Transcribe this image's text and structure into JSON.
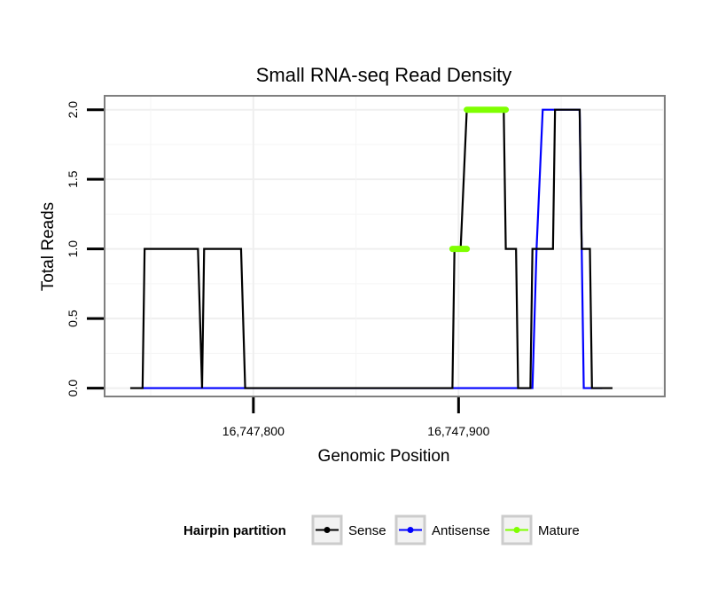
{
  "chart_data": {
    "type": "line",
    "title": "Small RNA-seq Read Density",
    "xlabel": "Genomic Position",
    "ylabel": "Total Reads",
    "xlim": [
      16747727.5,
      16748000.5
    ],
    "ylim": [
      -0.06,
      2.1
    ],
    "x_ticks": [
      16747800,
      16747900
    ],
    "x_tick_labels": [
      "16,747,800",
      "16,747,900"
    ],
    "y_ticks": [
      0.0,
      0.5,
      1.0,
      1.5,
      2.0
    ],
    "y_tick_labels": [
      "0.0",
      "0.5",
      "1.0",
      "1.5",
      "2.0"
    ],
    "legend": {
      "title": "Hairpin partition",
      "position": "bottom",
      "entries": [
        {
          "name": "Sense",
          "color": "#000000"
        },
        {
          "name": "Antisense",
          "color": "#0000ff"
        },
        {
          "name": "Mature",
          "color": "#7fff00"
        }
      ]
    },
    "series": [
      {
        "name": "Sense",
        "color": "#000000",
        "x": [
          16747740,
          16747746,
          16747747,
          16747773,
          16747775,
          16747776,
          16747794,
          16747796,
          16747897,
          16747898,
          16747901,
          16747904,
          16747922,
          16747923,
          16747928,
          16747929,
          16747935,
          16747936,
          16747946,
          16747947,
          16747959,
          16747960,
          16747964,
          16747965,
          16747975
        ],
        "y": [
          0,
          0,
          1,
          1,
          0,
          1,
          1,
          0,
          0,
          1,
          1,
          2,
          2,
          1,
          1,
          0,
          0,
          1,
          1,
          2,
          2,
          1,
          1,
          0,
          0
        ]
      },
      {
        "name": "Antisense",
        "color": "#0000ff",
        "x": [
          16747745,
          16747936,
          16747938,
          16747941,
          16747959,
          16747961,
          16747970
        ],
        "y": [
          0,
          0,
          1,
          2,
          2,
          0,
          0
        ]
      },
      {
        "name": "Mature",
        "color": "#7fff00",
        "x": [
          16747897,
          16747904,
          null,
          16747904,
          16747923
        ],
        "y": [
          1,
          1,
          null,
          2,
          2
        ]
      }
    ]
  }
}
